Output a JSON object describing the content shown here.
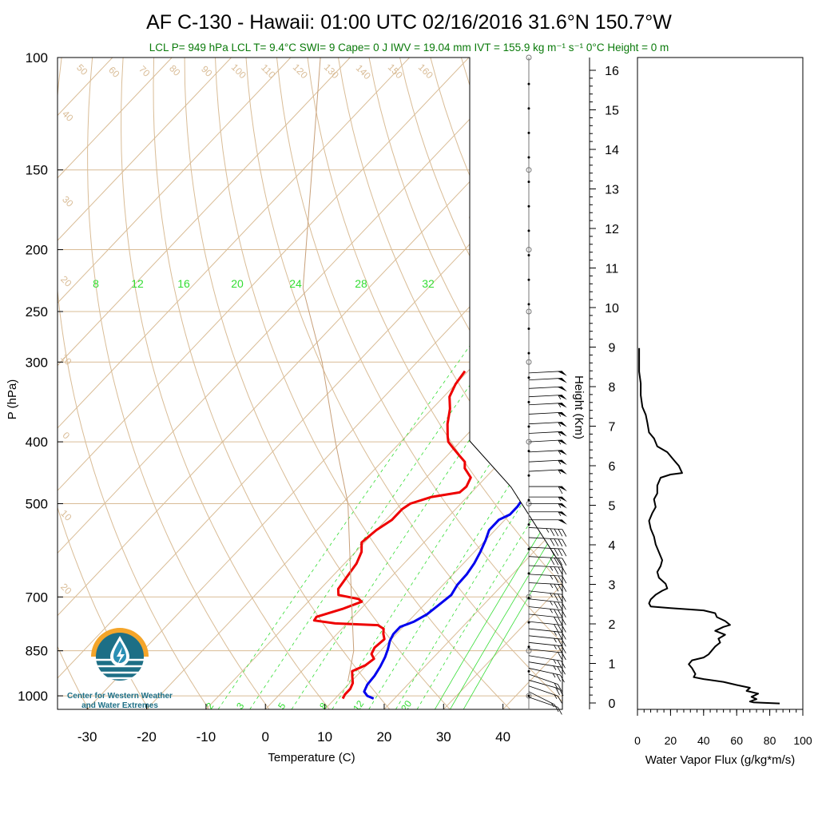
{
  "header": {
    "title": "AF C-130 - Hawaii: 01:00 UTC 02/16/2016  31.6°N 150.7°W",
    "indices": "LCL P= 949 hPa  LCL T= 9.4°C  SWI= 9  Cape= 0 J  IWV = 19.04 mm  IVT = 155.9 kg m⁻¹ s⁻¹  0°C Height = 0 m"
  },
  "logo": {
    "line1": "Center for Western Weather",
    "line2": "and Water Extremes",
    "colors": {
      "sun": "#f4a52a",
      "water": "#1d6f86",
      "drop": "#2a8fb4"
    }
  },
  "chart_data": [
    {
      "type": "line",
      "subtype": "skew-T log-P diagram",
      "xlabel": "Temperature (C)",
      "ylabel": "P (hPa)",
      "xlim": [
        -35,
        50
      ],
      "ylim": [
        1050,
        100
      ],
      "yscale": "log",
      "x_ticks": [
        -30,
        -20,
        -10,
        0,
        10,
        20,
        30,
        40
      ],
      "y_ticks": [
        100,
        150,
        200,
        250,
        300,
        400,
        500,
        700,
        850,
        1000
      ],
      "height_ticks_km": [
        0,
        1,
        2,
        3,
        4,
        5,
        6,
        7,
        8,
        9,
        10,
        11,
        12,
        13,
        14,
        15,
        16
      ],
      "height_axis_label": "Height (Km)",
      "background_labels": {
        "dry_adiabats": [
          "50",
          "60",
          "70",
          "80",
          "90",
          "100",
          "110",
          "120",
          "130",
          "140",
          "150",
          "160",
          "40",
          "30",
          "20",
          "10",
          "0",
          "10",
          "20"
        ],
        "isotherms": [
          "30",
          "20",
          "10",
          "0",
          "10",
          "20",
          "30"
        ],
        "mixing_ratio_top": [
          "8",
          "12",
          "16",
          "20",
          "24",
          "28",
          "32"
        ],
        "mixing_ratio_bottom": [
          "2",
          "3",
          "5",
          "8",
          "12",
          "20"
        ]
      },
      "colors": {
        "temperature": "#0000ee",
        "dewpoint": "#ee0000",
        "parcel": "#c8a07a",
        "background": "#d9bc96",
        "mixing_ratio": "#33dd33",
        "barbs": "#000000"
      },
      "series": [
        {
          "name": "Temperature",
          "values": [
            {
              "p": 1010,
              "t": 16.5
            },
            {
              "p": 1000,
              "t": 15.0
            },
            {
              "p": 985,
              "t": 13.8
            },
            {
              "p": 960,
              "t": 13.2
            },
            {
              "p": 930,
              "t": 13.0
            },
            {
              "p": 900,
              "t": 12.5
            },
            {
              "p": 870,
              "t": 11.8
            },
            {
              "p": 845,
              "t": 11.0
            },
            {
              "p": 820,
              "t": 10.0
            },
            {
              "p": 800,
              "t": 9.5
            },
            {
              "p": 780,
              "t": 9.5
            },
            {
              "p": 765,
              "t": 11.0
            },
            {
              "p": 745,
              "t": 12.0
            },
            {
              "p": 720,
              "t": 12.5
            },
            {
              "p": 695,
              "t": 13.0
            },
            {
              "p": 670,
              "t": 12.4
            },
            {
              "p": 645,
              "t": 12.3
            },
            {
              "p": 620,
              "t": 11.8
            },
            {
              "p": 595,
              "t": 11.0
            },
            {
              "p": 570,
              "t": 10.0
            },
            {
              "p": 550,
              "t": 9.0
            },
            {
              "p": 530,
              "t": 9.0
            },
            {
              "p": 520,
              "t": 10.0
            },
            {
              "p": 505,
              "t": 10.0
            },
            {
              "p": 485,
              "t": 9.5
            },
            {
              "p": 460,
              "t": 8.0
            },
            {
              "p": 440,
              "t": 6.2
            },
            {
              "p": 425,
              "t": 5.3
            },
            {
              "p": 410,
              "t": 5.0
            },
            {
              "p": 395,
              "t": 5.0
            },
            {
              "p": 380,
              "t": 4.0
            },
            {
              "p": 360,
              "t": 2.5
            },
            {
              "p": 340,
              "t": 1.0
            },
            {
              "p": 325,
              "t": 0.5
            },
            {
              "p": 315,
              "t": 0.0
            },
            {
              "p": 308,
              "t": -0.2
            }
          ]
        },
        {
          "name": "Dew point",
          "values": [
            {
              "p": 1010,
              "t": 11.3
            },
            {
              "p": 995,
              "t": 11.0
            },
            {
              "p": 975,
              "t": 11.0
            },
            {
              "p": 955,
              "t": 10.5
            },
            {
              "p": 935,
              "t": 9.5
            },
            {
              "p": 915,
              "t": 8.5
            },
            {
              "p": 895,
              "t": 9.8
            },
            {
              "p": 875,
              "t": 10.2
            },
            {
              "p": 860,
              "t": 9.0
            },
            {
              "p": 840,
              "t": 8.5
            },
            {
              "p": 815,
              "t": 8.8
            },
            {
              "p": 800,
              "t": 7.8
            },
            {
              "p": 785,
              "t": 7.0
            },
            {
              "p": 775,
              "t": 5.5
            },
            {
              "p": 770,
              "t": -2.0
            },
            {
              "p": 762,
              "t": -6.0
            },
            {
              "p": 752,
              "t": -6.2
            },
            {
              "p": 730,
              "t": -3.0
            },
            {
              "p": 712,
              "t": -1.0
            },
            {
              "p": 705,
              "t": -2.0
            },
            {
              "p": 695,
              "t": -6.0
            },
            {
              "p": 680,
              "t": -7.0
            },
            {
              "p": 650,
              "t": -7.5
            },
            {
              "p": 620,
              "t": -8.0
            },
            {
              "p": 595,
              "t": -9.0
            },
            {
              "p": 575,
              "t": -10.5
            },
            {
              "p": 550,
              "t": -10.0
            },
            {
              "p": 530,
              "t": -9.0
            },
            {
              "p": 510,
              "t": -9.0
            },
            {
              "p": 500,
              "t": -8.5
            },
            {
              "p": 488,
              "t": -6.0
            },
            {
              "p": 480,
              "t": -2.0
            },
            {
              "p": 470,
              "t": -1.8
            },
            {
              "p": 455,
              "t": -2.5
            },
            {
              "p": 440,
              "t": -5.0
            },
            {
              "p": 430,
              "t": -6.0
            },
            {
              "p": 420,
              "t": -8.0
            },
            {
              "p": 410,
              "t": -10.0
            },
            {
              "p": 400,
              "t": -12.0
            },
            {
              "p": 392,
              "t": -13.0
            },
            {
              "p": 375,
              "t": -15.0
            },
            {
              "p": 355,
              "t": -17.0
            },
            {
              "p": 340,
              "t": -19.0
            },
            {
              "p": 325,
              "t": -20.0
            },
            {
              "p": 310,
              "t": -20.5
            }
          ]
        },
        {
          "name": "Parcel",
          "values": [
            {
              "p": 949,
              "t": 9.4
            },
            {
              "p": 850,
              "t": 5.5
            },
            {
              "p": 700,
              "t": -3.5
            },
            {
              "p": 500,
              "t": -19.0
            },
            {
              "p": 400,
              "t": -31.0
            },
            {
              "p": 300,
              "t": -46.0
            },
            {
              "p": 230,
              "t": -61.0
            },
            {
              "p": 100,
              "t": -95.0
            }
          ]
        }
      ],
      "wind_barbs": [
        {
          "p": 1005,
          "speed_kt": 10,
          "dir": 300
        },
        {
          "p": 985,
          "speed_kt": 15,
          "dir": 310
        },
        {
          "p": 965,
          "speed_kt": 15,
          "dir": 300
        },
        {
          "p": 945,
          "speed_kt": 20,
          "dir": 295
        },
        {
          "p": 925,
          "speed_kt": 20,
          "dir": 300
        },
        {
          "p": 905,
          "speed_kt": 25,
          "dir": 290
        },
        {
          "p": 885,
          "speed_kt": 25,
          "dir": 285
        },
        {
          "p": 865,
          "speed_kt": 25,
          "dir": 285
        },
        {
          "p": 845,
          "speed_kt": 20,
          "dir": 280
        },
        {
          "p": 825,
          "speed_kt": 25,
          "dir": 280
        },
        {
          "p": 805,
          "speed_kt": 25,
          "dir": 280
        },
        {
          "p": 785,
          "speed_kt": 25,
          "dir": 280
        },
        {
          "p": 765,
          "speed_kt": 30,
          "dir": 280
        },
        {
          "p": 745,
          "speed_kt": 30,
          "dir": 280
        },
        {
          "p": 725,
          "speed_kt": 35,
          "dir": 280
        },
        {
          "p": 705,
          "speed_kt": 35,
          "dir": 280
        },
        {
          "p": 685,
          "speed_kt": 35,
          "dir": 280
        },
        {
          "p": 665,
          "speed_kt": 35,
          "dir": 275
        },
        {
          "p": 645,
          "speed_kt": 35,
          "dir": 275
        },
        {
          "p": 625,
          "speed_kt": 35,
          "dir": 275
        },
        {
          "p": 605,
          "speed_kt": 40,
          "dir": 275
        },
        {
          "p": 585,
          "speed_kt": 40,
          "dir": 275
        },
        {
          "p": 565,
          "speed_kt": 40,
          "dir": 275
        },
        {
          "p": 545,
          "speed_kt": 45,
          "dir": 275
        },
        {
          "p": 530,
          "speed_kt": 50,
          "dir": 270
        },
        {
          "p": 515,
          "speed_kt": 55,
          "dir": 270
        },
        {
          "p": 500,
          "speed_kt": 55,
          "dir": 270
        },
        {
          "p": 488,
          "speed_kt": 55,
          "dir": 270
        },
        {
          "p": 470,
          "speed_kt": 60,
          "dir": 270
        },
        {
          "p": 445,
          "speed_kt": 55,
          "dir": 265
        },
        {
          "p": 430,
          "speed_kt": 55,
          "dir": 265
        },
        {
          "p": 415,
          "speed_kt": 55,
          "dir": 265
        },
        {
          "p": 400,
          "speed_kt": 55,
          "dir": 265
        },
        {
          "p": 388,
          "speed_kt": 55,
          "dir": 265
        },
        {
          "p": 375,
          "speed_kt": 55,
          "dir": 265
        },
        {
          "p": 362,
          "speed_kt": 55,
          "dir": 265
        },
        {
          "p": 350,
          "speed_kt": 55,
          "dir": 265
        },
        {
          "p": 340,
          "speed_kt": 55,
          "dir": 265
        },
        {
          "p": 330,
          "speed_kt": 50,
          "dir": 265
        },
        {
          "p": 320,
          "speed_kt": 50,
          "dir": 265
        },
        {
          "p": 312,
          "speed_kt": 50,
          "dir": 265
        }
      ]
    },
    {
      "type": "line",
      "xlabel": "Water Vapor Flux (g/kg*m/s)",
      "ylabel": "Height (Km)",
      "xlim": [
        0,
        100
      ],
      "ylim": [
        -0.2,
        16.4
      ],
      "x_ticks": [
        0,
        20,
        40,
        60,
        80,
        100
      ],
      "y_ticks": [
        0,
        1,
        2,
        3,
        4,
        5,
        6,
        7,
        8,
        9,
        10,
        11,
        12,
        13,
        14,
        15,
        16
      ],
      "series": [
        {
          "name": "Water vapor flux",
          "color": "#000000",
          "values": [
            {
              "x": 86,
              "y": -0.05
            },
            {
              "x": 70,
              "y": -0.02
            },
            {
              "x": 68,
              "y": 0.0
            },
            {
              "x": 72,
              "y": 0.06
            },
            {
              "x": 69,
              "y": 0.12
            },
            {
              "x": 73,
              "y": 0.2
            },
            {
              "x": 66,
              "y": 0.27
            },
            {
              "x": 68,
              "y": 0.35
            },
            {
              "x": 60,
              "y": 0.42
            },
            {
              "x": 52,
              "y": 0.5
            },
            {
              "x": 40,
              "y": 0.57
            },
            {
              "x": 34,
              "y": 0.62
            },
            {
              "x": 35,
              "y": 0.7
            },
            {
              "x": 33,
              "y": 0.85
            },
            {
              "x": 31,
              "y": 0.95
            },
            {
              "x": 33,
              "y": 1.05
            },
            {
              "x": 40,
              "y": 1.12
            },
            {
              "x": 43,
              "y": 1.2
            },
            {
              "x": 45,
              "y": 1.3
            },
            {
              "x": 47,
              "y": 1.4
            },
            {
              "x": 50,
              "y": 1.5
            },
            {
              "x": 49,
              "y": 1.6
            },
            {
              "x": 53,
              "y": 1.7
            },
            {
              "x": 47,
              "y": 1.8
            },
            {
              "x": 52,
              "y": 1.9
            },
            {
              "x": 56,
              "y": 1.95
            },
            {
              "x": 53,
              "y": 2.05
            },
            {
              "x": 48,
              "y": 2.15
            },
            {
              "x": 47,
              "y": 2.25
            },
            {
              "x": 40,
              "y": 2.32
            },
            {
              "x": 20,
              "y": 2.38
            },
            {
              "x": 8,
              "y": 2.42
            },
            {
              "x": 7,
              "y": 2.5
            },
            {
              "x": 8,
              "y": 2.6
            },
            {
              "x": 11,
              "y": 2.72
            },
            {
              "x": 15,
              "y": 2.82
            },
            {
              "x": 18,
              "y": 2.88
            },
            {
              "x": 17,
              "y": 3.0
            },
            {
              "x": 13,
              "y": 3.15
            },
            {
              "x": 12,
              "y": 3.3
            },
            {
              "x": 14,
              "y": 3.45
            },
            {
              "x": 15,
              "y": 3.6
            },
            {
              "x": 13,
              "y": 3.8
            },
            {
              "x": 11,
              "y": 4.0
            },
            {
              "x": 10,
              "y": 4.2
            },
            {
              "x": 8,
              "y": 4.4
            },
            {
              "x": 7,
              "y": 4.6
            },
            {
              "x": 9,
              "y": 4.8
            },
            {
              "x": 11,
              "y": 4.95
            },
            {
              "x": 10,
              "y": 5.15
            },
            {
              "x": 12,
              "y": 5.3
            },
            {
              "x": 12,
              "y": 5.5
            },
            {
              "x": 14,
              "y": 5.7
            },
            {
              "x": 20,
              "y": 5.78
            },
            {
              "x": 27,
              "y": 5.82
            },
            {
              "x": 25,
              "y": 6.0
            },
            {
              "x": 22,
              "y": 6.15
            },
            {
              "x": 18,
              "y": 6.35
            },
            {
              "x": 12,
              "y": 6.5
            },
            {
              "x": 10,
              "y": 6.7
            },
            {
              "x": 7,
              "y": 6.85
            },
            {
              "x": 6,
              "y": 7.1
            },
            {
              "x": 5,
              "y": 7.3
            },
            {
              "x": 3,
              "y": 7.5
            },
            {
              "x": 2,
              "y": 7.8
            },
            {
              "x": 2,
              "y": 8.1
            },
            {
              "x": 1,
              "y": 8.4
            },
            {
              "x": 1,
              "y": 8.7
            },
            {
              "x": 1,
              "y": 9.0
            }
          ]
        }
      ]
    }
  ]
}
